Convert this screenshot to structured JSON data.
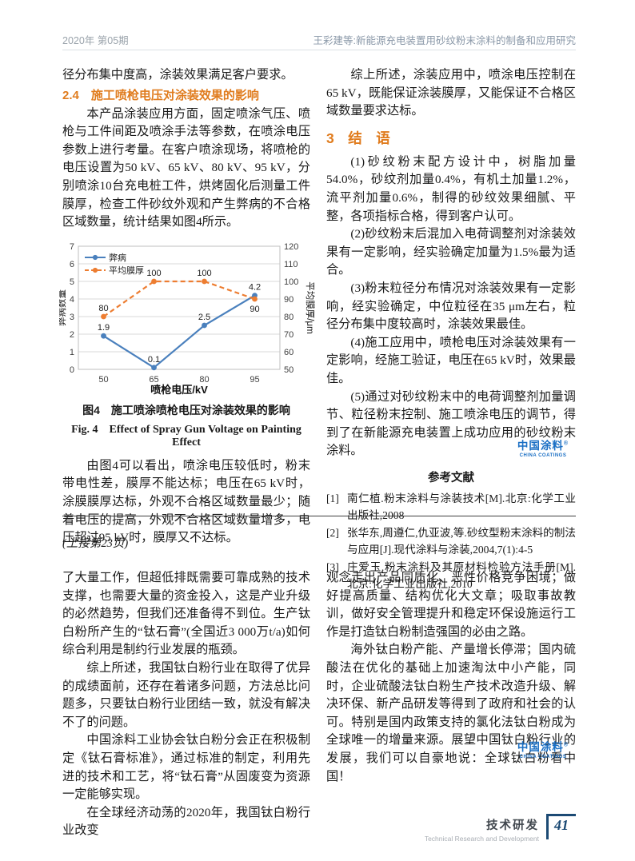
{
  "page": {
    "header": {
      "issue": "2020年  第05期",
      "running_title": "王彩建等:新能源充电装置用砂纹粉末涂料的制备和应用研究"
    },
    "footer": {
      "section_cn": "技术研发",
      "section_en": "Technical Research and Development",
      "page_number": "41"
    }
  },
  "logo": {
    "cn": "中国涂料",
    "mark": "®",
    "en": "CHINA COATINGS"
  },
  "colors": {
    "heading_orange": "#e07c1e",
    "series_blue": "#4a80bd",
    "series_orange": "#ed7d31",
    "logo_blue": "#1a6fc4",
    "footer_navy": "#1c4a74"
  },
  "article1": {
    "left": {
      "intro": "径分布集中度高，涂装效果满足客户要求。",
      "section_heading": "2.4　施工喷枪电压对涂装效果的影响",
      "para1": "本产品涂装应用方面，固定喷涂气压、喷枪与工件间距及喷涂手法等参数，在喷涂电压参数上进行考量。在客户喷涂现场，将喷枪的电压设置为50 kV、65 kV、80 kV、95 kV，分别喷涂10台充电桩工件，烘烤固化后测量工件膜厚，检查工件砂纹外观和产生弊病的不合格区域数量，统计结果如图4所示。",
      "figure_caption_cn": "图4　施工喷涂喷枪电压对涂装效果的影响",
      "figure_caption_en": "Fig. 4　Effect of Spray Gun Voltage on Painting Effect",
      "para2": "由图4可以看出，喷涂电压较低时，粉末带电性差，膜厚不能达标；电压在65 kV时，涂膜膜厚达标，外观不合格区域数量最少；随着电压的提高，外观不合格区域数量增多，电压超过95 kV时，膜厚又不达标。"
    },
    "right": {
      "para0": "综上所述，涂装应用中，喷涂电压控制在65 kV，既能保证涂装膜厚，又能保证不合格区域数量要求达标。",
      "section_heading": "3　结　语",
      "paras": [
        "(1)砂纹粉末配方设计中，树脂加量54.0%，砂纹剂加量0.4%，有机土加量1.2%，流平剂加量0.6%，制得的砂纹效果细腻、平整，各项指标合格，得到客户认可。",
        "(2)砂纹粉末后混加入电荷调整剂对涂装效果有一定影响，经实验确定加量为1.5%最为适合。",
        "(3)粉末粒径分布情况对涂装效果有一定影响，经实验确定，中位粒径在35 μm左右，粒径分布集中度较高时，涂装效果最佳。",
        "(4)施工应用中，喷枪电压对涂装效果有一定影响，经施工验证，电压在65 kV时，效果最佳。",
        "(5)通过对砂纹粉末中的电荷调整剂加量调节、粒径粉末控制、施工喷涂电压的调节，得到了在新能源充电装置上成功应用的砂纹粉末涂料。"
      ],
      "references_heading": "参考文献",
      "references": [
        {
          "label": "[1]",
          "text": "南仁植.粉末涂料与涂装技术[M].北京:化学工业出版社,2008"
        },
        {
          "label": "[2]",
          "text": "张华东,周遵仁,仇亚波,等.砂纹型粉末涂料的制法与应用[J].现代涂料与涂装,2004,7(1):4-5"
        },
        {
          "label": "[3]",
          "text": "庄爱玉.粉末涂料及其原材料检验方法手册[M].北京:化学工业出版社,2010"
        }
      ]
    }
  },
  "article2": {
    "continued_note": "(上接第23页)",
    "left_paras": [
      "了大量工作，但超低排既需要可靠成熟的技术支撑，也需要大量的资金投入，这是产业升级的必然趋势，但我们还准备得不到位。生产钛白粉所产生的“钛石膏”(全国近3 000万t/a)如何综合利用是制约行业发展的瓶颈。",
      "综上所述，我国钛白粉行业在取得了优异的成绩面前，还存在着诸多问题，方法总比问题多，只要钛白粉行业团结一致，就没有解决不了的问题。",
      "中国涂料工业协会钛白粉分会正在积极制定《钛石膏标准》，通过标准的制定，利用先进的技术和工艺，将“钛石膏”从固废变为资源一定能够实现。",
      "在全球经济动荡的2020年，我国钛白粉行业改变"
    ],
    "right_paras": [
      "观念走出产品同质化、恶性价格竞争困境；做好提高质量、结构优化大文章；吸取事故教训，做好安全管理提升和稳定环保设施运行工作是打造钛白粉制造强国的必由之路。",
      "海外钛白粉产能、产量增长停滞；国内硫酸法在优化的基础上加速淘汰中小产能，同时，企业硫酸法钛白粉生产技术改造升级、解决环保、新产品研发等得到了政府和社会的认可。特别是国内政策支持的氯化法钛白粉成为全球唯一的增量来源。展望中国钛白粉行业的发展，我们可以自豪地说：全球钛白粉看中国！"
    ]
  },
  "chart_data": {
    "type": "line",
    "categories": [
      "50",
      "65",
      "80",
      "95"
    ],
    "xlabel": "喷枪电压/kV",
    "ylabel_left": "弊病数量",
    "ylabel_right": "平均膜厚/μm",
    "ylim_left": [
      0,
      7
    ],
    "ylim_right": [
      50,
      120
    ],
    "yticks_left": [
      0,
      1,
      2,
      3,
      4,
      5,
      6,
      7
    ],
    "yticks_right": [
      50,
      60,
      70,
      80,
      90,
      100,
      110,
      120
    ],
    "grid": true,
    "legend_position": "top-left-inside",
    "series": [
      {
        "name": "弊病",
        "axis": "left",
        "color": "#4a80bd",
        "style": "solid",
        "marker": "circle",
        "values": [
          1.9,
          0.1,
          2.5,
          4.2
        ],
        "label_positions": [
          "above",
          "above",
          "above",
          "above"
        ]
      },
      {
        "name": "平均膜厚",
        "axis": "right",
        "color": "#ed7d31",
        "style": "dashed",
        "marker": "circle",
        "values": [
          80,
          100,
          100,
          90
        ],
        "label_positions": [
          "above",
          "above",
          "above",
          "below"
        ]
      }
    ]
  }
}
